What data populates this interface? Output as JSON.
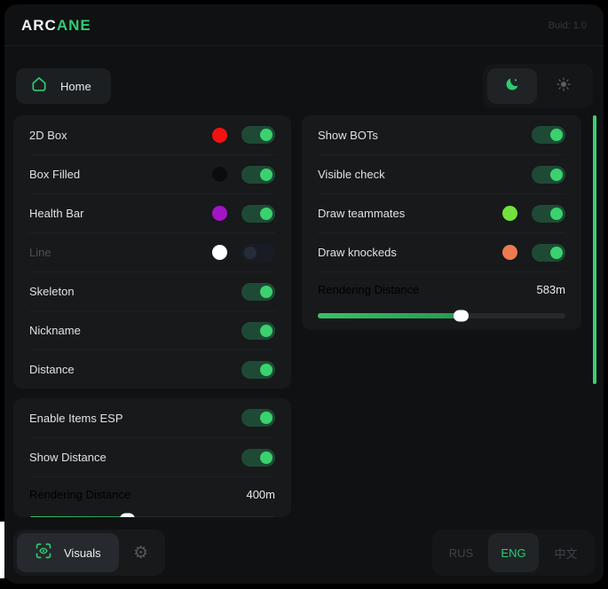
{
  "header": {
    "logo_part1": "ARC",
    "logo_part2": "ANE",
    "build": "Buid: 1.0"
  },
  "nav": {
    "home_label": "Home",
    "dark_mode_active": true,
    "light_mode_active": false
  },
  "colors": {
    "accent": "#2ecc71",
    "scrollbar": "#3ecf70",
    "dot_2d_box": "#f31212",
    "dot_box_filled": "#0c0c0e",
    "dot_health_bar": "#a214c6",
    "dot_line": "#ffffff",
    "dot_teammates": "#72e23c",
    "dot_knockeds": "#ee7a50"
  },
  "panels": {
    "esp": {
      "rows": [
        {
          "label": "2D Box",
          "dot": "#f31212",
          "toggle": true,
          "disabled": false
        },
        {
          "label": "Box Filled",
          "dot": "#0c0c0e",
          "toggle": true,
          "disabled": false
        },
        {
          "label": "Health Bar",
          "dot": "#a214c6",
          "toggle": true,
          "disabled": false
        },
        {
          "label": "Line",
          "dot": "#ffffff",
          "toggle": false,
          "disabled": true
        },
        {
          "label": "Skeleton",
          "toggle": true,
          "disabled": false
        },
        {
          "label": "Nickname",
          "toggle": true,
          "disabled": false
        },
        {
          "label": "Distance",
          "toggle": true,
          "disabled": false
        }
      ]
    },
    "items": {
      "rows": [
        {
          "label": "Enable Items ESP",
          "toggle": true
        },
        {
          "label": "Show Distance",
          "toggle": true
        }
      ],
      "slider": {
        "label": "Rendering Distance",
        "value": "400m",
        "percent": 40
      }
    },
    "bots": {
      "rows": [
        {
          "label": "Show BOTs",
          "toggle": true
        },
        {
          "label": "Visible check",
          "toggle": true
        },
        {
          "label": "Draw teammates",
          "dot": "#72e23c",
          "toggle": true
        },
        {
          "label": "Draw knockeds",
          "dot": "#ee7a50",
          "toggle": true
        }
      ],
      "slider": {
        "label": "Rendering Distance",
        "value": "583m",
        "percent": 58
      }
    }
  },
  "footer": {
    "visuals_label": "Visuals",
    "languages": [
      {
        "label": "RUS",
        "active": false
      },
      {
        "label": "ENG",
        "active": true
      },
      {
        "label": "中文",
        "active": false
      }
    ]
  }
}
